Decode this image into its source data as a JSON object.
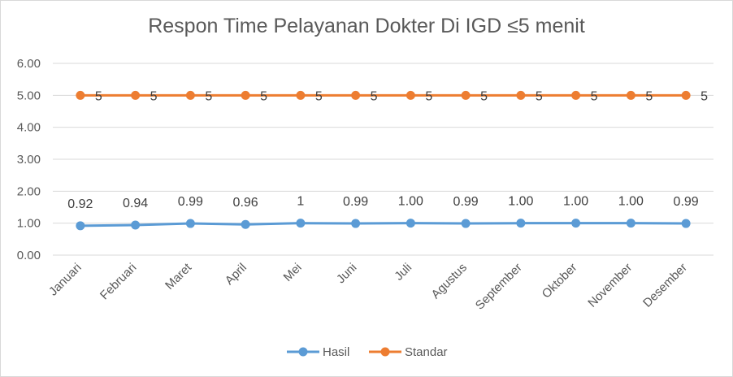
{
  "chart_data": {
    "type": "line",
    "title": "Respon Time Pelayanan Dokter Di IGD ≤5 menit",
    "categories": [
      "Januari",
      "Februari",
      "Maret",
      "April",
      "Mei",
      "Juni",
      "Juli",
      "Agustus",
      "September",
      "Oktober",
      "November",
      "Desember"
    ],
    "series": [
      {
        "name": "Hasil",
        "color": "#5b9bd5",
        "values": [
          0.92,
          0.94,
          0.99,
          0.96,
          1,
          0.99,
          1.0,
          0.99,
          1.0,
          1.0,
          1.0,
          0.99
        ],
        "labels": [
          "0.92",
          "0.94",
          "0.99",
          "0.96",
          "1",
          "0.99",
          "1.00",
          "0.99",
          "1.00",
          "1.00",
          "1.00",
          "0.99"
        ]
      },
      {
        "name": "Standar",
        "color": "#ed7d31",
        "values": [
          5,
          5,
          5,
          5,
          5,
          5,
          5,
          5,
          5,
          5,
          5,
          5
        ],
        "labels": [
          "5",
          "5",
          "5",
          "5",
          "5",
          "5",
          "5",
          "5",
          "5",
          "5",
          "5",
          "5"
        ]
      }
    ],
    "ylim": [
      0,
      6
    ],
    "yticks": [
      "0.00",
      "1.00",
      "2.00",
      "3.00",
      "4.00",
      "5.00",
      "6.00"
    ],
    "grid": true,
    "legend_position": "bottom"
  }
}
